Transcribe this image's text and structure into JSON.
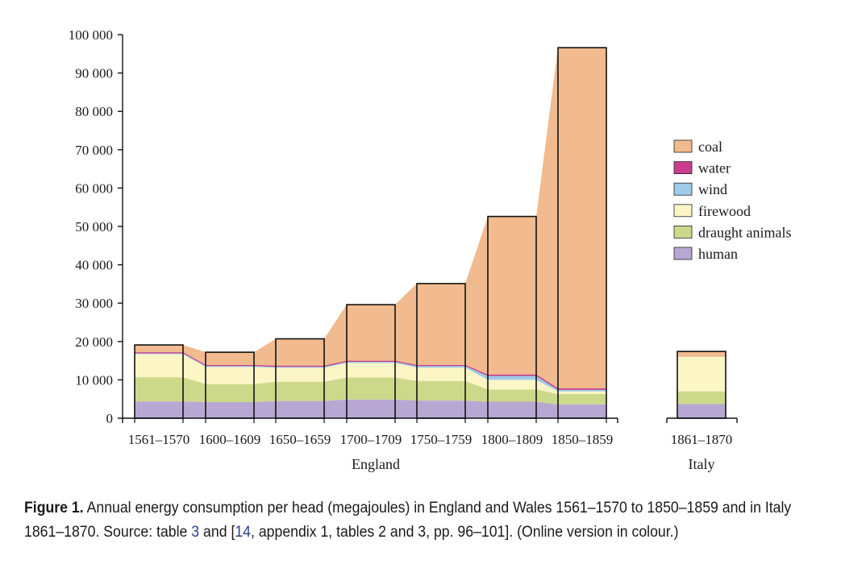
{
  "chart_data": {
    "type": "area",
    "stacked": true,
    "y_unit": "megajoules per head",
    "ylim": [
      0,
      100000
    ],
    "yticks": [
      0,
      10000,
      20000,
      30000,
      40000,
      50000,
      60000,
      70000,
      80000,
      90000,
      100000
    ],
    "ytick_labels": [
      "0",
      "10 000",
      "20 000",
      "30 000",
      "40 000",
      "50 000",
      "60 000",
      "70 000",
      "80 000",
      "90 000",
      "100 000"
    ],
    "groups": [
      {
        "name": "England",
        "categories": [
          "1561–1570",
          "1600–1609",
          "1650–1659",
          "1700–1709",
          "1750–1759",
          "1800–1809",
          "1850–1859"
        ]
      },
      {
        "name": "Italy",
        "categories": [
          "1861–1870"
        ]
      }
    ],
    "series": [
      {
        "name": "human",
        "color": "#b7a8d3",
        "values": [
          4400,
          4200,
          4500,
          4900,
          4600,
          4300,
          3600,
          3700
        ]
      },
      {
        "name": "draught animals",
        "color": "#cdd98a",
        "values": [
          6300,
          4700,
          5000,
          5700,
          5100,
          3200,
          2700,
          3300
        ]
      },
      {
        "name": "firewood",
        "color": "#fcf5c6",
        "values": [
          6000,
          4500,
          3700,
          3800,
          3500,
          2500,
          700,
          9000
        ]
      },
      {
        "name": "wind",
        "color": "#9ecbe8",
        "values": [
          100,
          100,
          100,
          200,
          300,
          900,
          300,
          0
        ]
      },
      {
        "name": "water",
        "color": "#c93d8c",
        "values": [
          200,
          200,
          200,
          200,
          200,
          300,
          300,
          0
        ]
      },
      {
        "name": "coal",
        "color": "#f1bb8f",
        "values": [
          2100,
          3500,
          7200,
          14800,
          21400,
          41400,
          89000,
          1400
        ]
      }
    ],
    "totals": [
      19100,
      17200,
      20700,
      29600,
      35100,
      52600,
      96600,
      17400
    ],
    "legend_position": "right",
    "legend_order": [
      "coal",
      "water",
      "wind",
      "firewood",
      "draught animals",
      "human"
    ]
  },
  "caption": {
    "label": "Figure 1.",
    "text_before_ref1": " Annual energy consumption per head (megajoules) in England and Wales 1561–1570 to 1850–1859 and in Italy 1861–1870. Source: table ",
    "ref1": "3",
    "text_between": " and [",
    "ref2": "14",
    "text_after": ", appendix 1, tables 2 and 3, pp. 96–101]. (Online version in colour.)"
  }
}
